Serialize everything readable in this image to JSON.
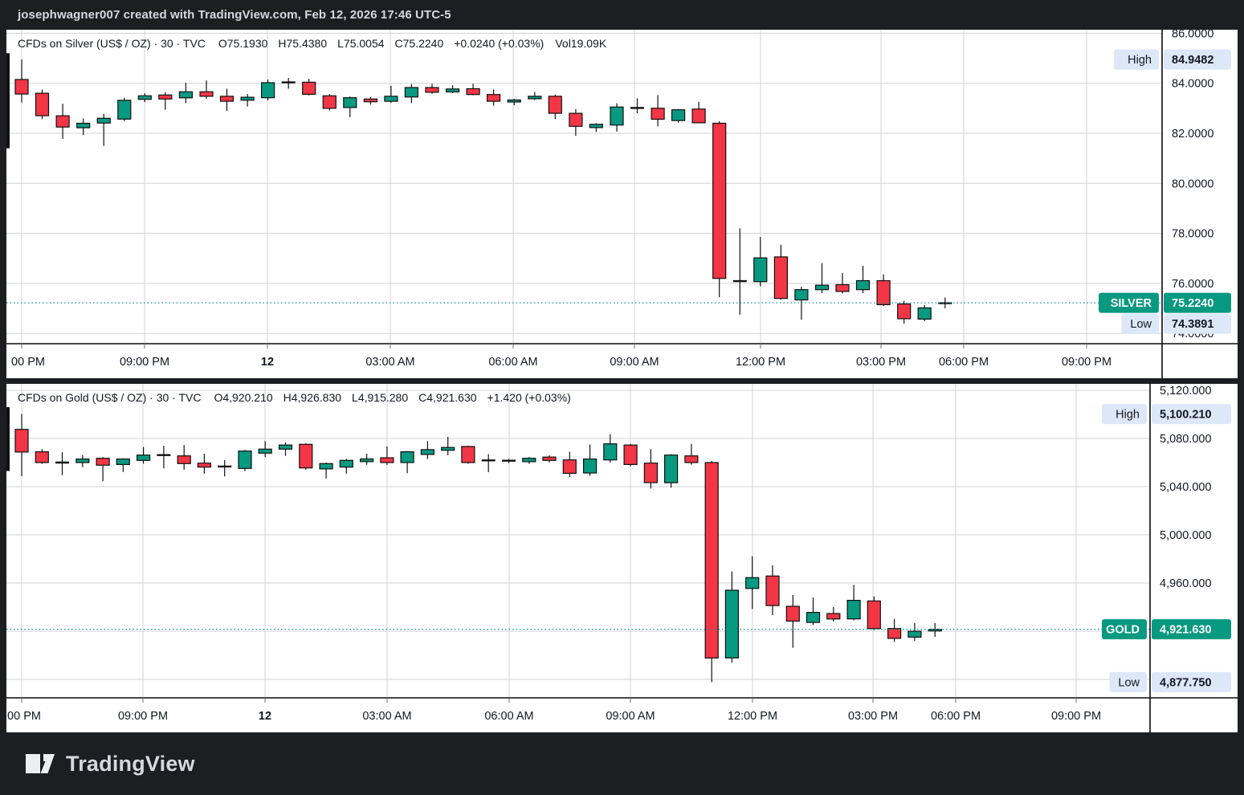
{
  "header": {
    "attribution": "josephwagner007 created with TradingView.com, Feb 12, 2026 17:46 UTC-5"
  },
  "footer": {
    "brand": "TradingView"
  },
  "colors": {
    "up": "#089981",
    "down": "#f23645",
    "neutral": "#101010",
    "frame_bg": "#1c1e22",
    "pane_bg": "#ffffff",
    "grid": "#d1d3d6",
    "axis_line": "#0c0c0c",
    "text": "#131722",
    "badge_blue": "#dce8f8",
    "badge_teal": "#089981",
    "price_line": "#089981"
  },
  "chart_data": [
    {
      "type": "candlestick",
      "title": "CFDs on Silver (US$ / OZ) · 30 · TVC",
      "readout": {
        "o": "O75.1930",
        "h": "H75.4380",
        "l": "L75.0054",
        "c": "C75.2240",
        "change": "+0.0240 (+0.03%)",
        "volume": "Vol19.09K"
      },
      "symbol_badge": "SILVER",
      "last_price": 75.224,
      "last_price_label": "75.2240",
      "high_badge": {
        "name": "High",
        "price": 84.9482,
        "label": "84.9482"
      },
      "low_badge": {
        "name": "Low",
        "price": 74.3891,
        "label": "74.3891"
      },
      "y_axis_range": [
        86.14,
        73.59
      ],
      "y_ticks": [
        {
          "label": "86.0000",
          "price": 86.0
        },
        {
          "label": "84.0000",
          "price": 84.0
        },
        {
          "label": "82.0000",
          "price": 82.0
        },
        {
          "label": "80.0000",
          "price": 80.0
        },
        {
          "label": "78.0000",
          "price": 78.0
        },
        {
          "label": "76.0000",
          "price": 76.0
        },
        {
          "label": "74.0000",
          "price": 74.0
        }
      ],
      "y_grid_prices": [
        86,
        84,
        82,
        80,
        78,
        76,
        74
      ],
      "x_axis": {
        "labels": [
          {
            "text": "00 PM",
            "x": 27
          },
          {
            "text": "09:00 PM",
            "x": 172
          },
          {
            "text": "12",
            "x": 325,
            "bold": true
          },
          {
            "text": "03:00 AM",
            "x": 478
          },
          {
            "text": "06:00 AM",
            "x": 631
          },
          {
            "text": "09:00 AM",
            "x": 782
          },
          {
            "text": "12:00 PM",
            "x": 939
          },
          {
            "text": "03:00 PM",
            "x": 1089
          },
          {
            "text": "06:00 PM",
            "x": 1192
          },
          {
            "text": "09:00 PM",
            "x": 1345
          }
        ],
        "grid_x": [
          19,
          172,
          325,
          478,
          631,
          782,
          939,
          1089,
          1192,
          1345
        ]
      },
      "clipped_bar": {
        "top_price": 85.2,
        "bottom_price": 81.4
      },
      "bars": [
        [
          "18:00",
          84.15,
          84.95,
          83.23,
          83.57
        ],
        [
          "18:30",
          83.6,
          83.75,
          82.57,
          82.7
        ],
        [
          "19:00",
          82.7,
          83.18,
          81.77,
          82.25
        ],
        [
          "19:30",
          82.22,
          82.6,
          81.93,
          82.4
        ],
        [
          "20:00",
          82.41,
          82.78,
          81.5,
          82.6
        ],
        [
          "20:30",
          82.57,
          83.42,
          82.49,
          83.32
        ],
        [
          "21:00",
          83.36,
          83.6,
          83.25,
          83.5
        ],
        [
          "21:30",
          83.53,
          83.64,
          82.94,
          83.37
        ],
        [
          "22:00",
          83.42,
          84.02,
          83.21,
          83.66
        ],
        [
          "22:30",
          83.66,
          84.11,
          83.38,
          83.48
        ],
        [
          "23:00",
          83.48,
          83.78,
          82.89,
          83.28
        ],
        [
          "23:30",
          83.32,
          83.57,
          83.07,
          83.44
        ],
        [
          "00:00",
          83.42,
          84.15,
          83.32,
          84.02
        ],
        [
          "00:30",
          84.04,
          84.21,
          83.78,
          84.03
        ],
        [
          "01:00",
          84.04,
          84.18,
          83.51,
          83.56
        ],
        [
          "01:30",
          83.5,
          83.57,
          82.92,
          83.0
        ],
        [
          "02:00",
          83.03,
          83.47,
          82.64,
          83.42
        ],
        [
          "02:30",
          83.37,
          83.45,
          83.15,
          83.26
        ],
        [
          "03:00",
          83.28,
          83.9,
          83.22,
          83.48
        ],
        [
          "03:30",
          83.45,
          83.97,
          83.21,
          83.83
        ],
        [
          "04:00",
          83.83,
          83.98,
          83.58,
          83.64
        ],
        [
          "04:30",
          83.65,
          83.92,
          83.6,
          83.77
        ],
        [
          "05:00",
          83.78,
          83.98,
          83.52,
          83.55
        ],
        [
          "05:30",
          83.55,
          83.75,
          83.1,
          83.28
        ],
        [
          "06:00",
          83.25,
          83.38,
          83.12,
          83.33
        ],
        [
          "06:30",
          83.38,
          83.65,
          83.33,
          83.48
        ],
        [
          "07:00",
          83.48,
          83.55,
          82.57,
          82.8
        ],
        [
          "07:30",
          82.8,
          82.97,
          81.9,
          82.28
        ],
        [
          "08:00",
          82.23,
          82.4,
          82.05,
          82.36
        ],
        [
          "08:30",
          82.33,
          83.2,
          82.07,
          83.05
        ],
        [
          "09:00",
          83.02,
          83.4,
          82.8,
          83.01
        ],
        [
          "09:30",
          83.0,
          83.53,
          82.28,
          82.56
        ],
        [
          "10:00",
          82.51,
          82.97,
          82.43,
          82.94
        ],
        [
          "10:30",
          82.97,
          83.26,
          82.4,
          82.42
        ],
        [
          "11:00",
          82.4,
          82.48,
          75.45,
          76.2
        ],
        [
          "11:30",
          76.1,
          78.2,
          74.75,
          76.08
        ],
        [
          "12:00",
          76.07,
          77.86,
          75.88,
          77.02
        ],
        [
          "12:30",
          77.06,
          77.54,
          75.35,
          75.4
        ],
        [
          "13:00",
          75.34,
          75.87,
          74.55,
          75.75
        ],
        [
          "13:30",
          75.75,
          76.81,
          75.61,
          75.93
        ],
        [
          "14:00",
          75.95,
          76.41,
          75.6,
          75.68
        ],
        [
          "14:30",
          75.75,
          76.7,
          75.61,
          76.11
        ],
        [
          "15:00",
          76.11,
          76.36,
          75.1,
          75.15
        ],
        [
          "15:30",
          75.18,
          75.3,
          74.39,
          74.59
        ],
        [
          "16:00",
          74.57,
          75.13,
          74.49,
          75.02
        ],
        [
          "16:30",
          75.193,
          75.438,
          75.005,
          75.224
        ]
      ]
    },
    {
      "type": "candlestick",
      "title": "CFDs on Gold (US$ / OZ) · 30 · TVC",
      "readout": {
        "o": "O4,920.210",
        "h": "H4,926.830",
        "l": "L4,915.280",
        "c": "C4,921.630",
        "change": "+1.420 (+0.03%)"
      },
      "symbol_badge": "GOLD",
      "last_price": 4921.63,
      "last_price_label": "4,921.630",
      "high_badge": {
        "name": "High",
        "price": 5100.21,
        "label": "5,100.210"
      },
      "low_badge": {
        "name": "Low",
        "price": 4877.75,
        "label": "4,877.750"
      },
      "y_axis_range": [
        5125.3,
        4864.7
      ],
      "y_ticks": [
        {
          "label": "5,120.000",
          "price": 5120
        },
        {
          "label": "5,080.000",
          "price": 5080
        },
        {
          "label": "5,040.000",
          "price": 5040
        },
        {
          "label": "5,000.000",
          "price": 5000
        },
        {
          "label": "4,960.000",
          "price": 4960
        }
      ],
      "y_grid_prices": [
        5120,
        5080,
        5040,
        5000,
        4960,
        4920,
        4880
      ],
      "x_axis": {
        "labels": [
          {
            "text": "00 PM",
            "x": 22
          },
          {
            "text": "09:00 PM",
            "x": 170
          },
          {
            "text": "12",
            "x": 322,
            "bold": true
          },
          {
            "text": "03:00 AM",
            "x": 474
          },
          {
            "text": "06:00 AM",
            "x": 626
          },
          {
            "text": "09:00 AM",
            "x": 777
          },
          {
            "text": "12:00 PM",
            "x": 929
          },
          {
            "text": "03:00 PM",
            "x": 1079
          },
          {
            "text": "06:00 PM",
            "x": 1182
          },
          {
            "text": "09:00 PM",
            "x": 1332
          }
        ],
        "grid_x": [
          19,
          170,
          322,
          474,
          626,
          777,
          929,
          1079,
          1182,
          1332
        ]
      },
      "clipped_bar": {
        "top_price": 5106,
        "bottom_price": 5053
      },
      "bars": [
        [
          "18:00",
          5087.5,
          5100.21,
          5048.7,
          5068.7
        ],
        [
          "18:30",
          5068.9,
          5071.1,
          5058.9,
          5060.0
        ],
        [
          "19:00",
          5060.0,
          5068.5,
          5049.5,
          5060.0
        ],
        [
          "19:30",
          5060.0,
          5066.2,
          5056.2,
          5062.9
        ],
        [
          "20:00",
          5063.5,
          5064.5,
          5044.5,
          5057.8
        ],
        [
          "20:30",
          5058.4,
          5063.5,
          5052.2,
          5062.9
        ],
        [
          "21:00",
          5061.8,
          5072.9,
          5059.0,
          5066.2
        ],
        [
          "21:30",
          5066.2,
          5074.0,
          5055.1,
          5066.2
        ],
        [
          "22:00",
          5065.5,
          5074.5,
          5054.0,
          5059.1
        ],
        [
          "22:30",
          5059.5,
          5067.3,
          5050.7,
          5056.2
        ],
        [
          "23:00",
          5056.7,
          5062.0,
          5048.5,
          5056.7
        ],
        [
          "23:30",
          5055.1,
          5070.5,
          5052.9,
          5069.5
        ],
        [
          "00:00",
          5067.8,
          5077.8,
          5064.5,
          5071.1
        ],
        [
          "00:30",
          5071.1,
          5076.7,
          5065.5,
          5074.5
        ],
        [
          "01:00",
          5075.1,
          5076.0,
          5054.0,
          5055.5
        ],
        [
          "01:30",
          5054.7,
          5060.0,
          5046.7,
          5059.1
        ],
        [
          "02:00",
          5056.2,
          5062.9,
          5050.7,
          5061.8
        ],
        [
          "02:30",
          5060.8,
          5067.3,
          5058.2,
          5063.0
        ],
        [
          "03:00",
          5064.0,
          5073.3,
          5058.0,
          5060.0
        ],
        [
          "03:30",
          5060.0,
          5069.5,
          5051.1,
          5068.9
        ],
        [
          "04:00",
          5066.7,
          5077.8,
          5063.0,
          5070.7
        ],
        [
          "04:30",
          5070.2,
          5081.3,
          5066.0,
          5072.5
        ],
        [
          "05:00",
          5073.3,
          5074.0,
          5059.0,
          5060.0
        ],
        [
          "05:30",
          5061.8,
          5067.0,
          5052.0,
          5061.8
        ],
        [
          "06:00",
          5061.5,
          5063.0,
          5059.5,
          5061.5
        ],
        [
          "06:30",
          5060.7,
          5064.5,
          5059.0,
          5063.5
        ],
        [
          "07:00",
          5064.5,
          5066.0,
          5060.0,
          5061.8
        ],
        [
          "07:30",
          5062.2,
          5068.9,
          5048.0,
          5051.1
        ],
        [
          "08:00",
          5051.3,
          5075.0,
          5049.0,
          5062.9
        ],
        [
          "08:30",
          5062.2,
          5083.5,
          5060.0,
          5075.5
        ],
        [
          "09:00",
          5074.5,
          5075.5,
          5056.9,
          5058.4
        ],
        [
          "09:30",
          5059.5,
          5071.1,
          5038.4,
          5043.3
        ],
        [
          "10:00",
          5043.3,
          5067.0,
          5039.1,
          5066.2
        ],
        [
          "10:30",
          5065.5,
          5075.5,
          5058.2,
          5060.0
        ],
        [
          "11:00",
          5060.0,
          5061.3,
          4877.75,
          4897.8
        ],
        [
          "11:30",
          4897.8,
          4969.6,
          4894.0,
          4954.0
        ],
        [
          "12:00",
          4955.5,
          4982.2,
          4938.4,
          4964.5
        ],
        [
          "12:30",
          4965.8,
          4974.7,
          4933.3,
          4941.3
        ],
        [
          "13:00",
          4940.7,
          4950.0,
          4906.2,
          4928.4
        ],
        [
          "13:30",
          4927.3,
          4947.8,
          4925.1,
          4935.6
        ],
        [
          "14:00",
          4934.7,
          4940.0,
          4928.0,
          4930.2
        ],
        [
          "14:30",
          4930.2,
          4958.4,
          4929.0,
          4945.6
        ],
        [
          "15:00",
          4945.1,
          4948.9,
          4920.9,
          4922.2
        ],
        [
          "15:30",
          4922.2,
          4930.2,
          4911.1,
          4914.0
        ],
        [
          "16:00",
          4915.1,
          4926.7,
          4911.8,
          4920.0
        ],
        [
          "16:30",
          4920.21,
          4926.83,
          4915.28,
          4921.63
        ]
      ]
    }
  ]
}
